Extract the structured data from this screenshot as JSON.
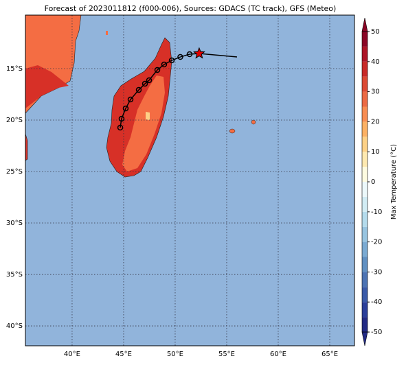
{
  "chart_data": {
    "type": "map",
    "title": "Forecast of 2023011812 (f000-006), Sources: GDACS (TC track), GFS (Meteo)",
    "xlim": [
      35.47,
      67.4
    ],
    "ylim": [
      -41.93,
      -9.8
    ],
    "xticks": [
      {
        "value": 40,
        "label": "40°E"
      },
      {
        "value": 45,
        "label": "45°E"
      },
      {
        "value": 50,
        "label": "50°E"
      },
      {
        "value": 55,
        "label": "55°E"
      },
      {
        "value": 60,
        "label": "60°E"
      },
      {
        "value": 65,
        "label": "65°E"
      }
    ],
    "yticks": [
      {
        "value": -15,
        "label": "15°S"
      },
      {
        "value": -20,
        "label": "20°S"
      },
      {
        "value": -25,
        "label": "25°S"
      },
      {
        "value": -30,
        "label": "30°S"
      },
      {
        "value": -35,
        "label": "35°S"
      },
      {
        "value": -40,
        "label": "40°S"
      }
    ],
    "grid": true,
    "track": {
      "lon": [
        52.33,
        51.4,
        50.5,
        49.67,
        48.93,
        48.27,
        47.47,
        47.07,
        46.47,
        45.67,
        45.2,
        44.8,
        44.67
      ],
      "lat": [
        -13.53,
        -13.6,
        -13.87,
        -14.2,
        -14.6,
        -15.13,
        -16.13,
        -16.47,
        -17.07,
        -18.0,
        -18.87,
        -19.87,
        -20.73
      ]
    },
    "past_track": {
      "lon": [
        52.33,
        56.0
      ],
      "lat": [
        -13.53,
        -13.87
      ]
    },
    "current_position": {
      "lon": 52.33,
      "lat": -13.53,
      "color": "#e00000"
    },
    "colorbar": {
      "label": "Max Temperature (°C)",
      "levels": [
        -50,
        -45,
        -40,
        -35,
        -30,
        -25,
        -20,
        -15,
        -10,
        -5,
        0,
        5,
        10,
        15,
        20,
        25,
        30,
        35,
        40,
        45,
        50
      ],
      "colors": [
        "#222a84",
        "#2b3f9a",
        "#3a5aa8",
        "#4c73b3",
        "#6090c2",
        "#7aaad2",
        "#97c4e0",
        "#b4dbec",
        "#d1ecf4",
        "#ecf8fa",
        "#fefbe0",
        "#fee9b0",
        "#fdd186",
        "#fcb164",
        "#f88d52",
        "#ec6a44",
        "#dc4a34",
        "#c82a28",
        "#ad1527",
        "#8a0626"
      ],
      "ticks": [
        -50,
        -40,
        -30,
        -20,
        -10,
        0,
        10,
        20,
        30,
        40,
        50
      ]
    }
  }
}
